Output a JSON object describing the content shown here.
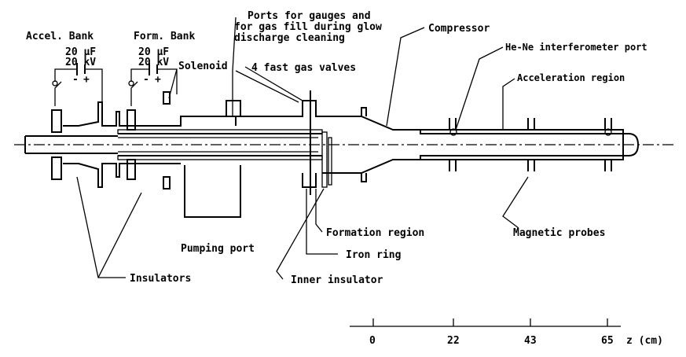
{
  "labels": {
    "accel_bank": "Accel. Bank",
    "form_bank": "Form. Bank",
    "accel_cap": "20 μF",
    "accel_volt": "20 kV",
    "form_cap": "20 μF",
    "form_volt": "20 kV",
    "ports_1": "Ports for gauges and",
    "ports_2": "for gas fill during glow",
    "ports_3": "discharge cleaning",
    "compressor": "Compressor",
    "he_ne": "He-Ne interferometer port",
    "solenoid": "Solenoid",
    "gas_valves": "4 fast gas valves",
    "acceleration_region": "Acceleration region",
    "formation_region": "Formation region",
    "magnetic_probes": "Magnetic probes",
    "pumping_port": "Pumping port",
    "iron_ring": "Iron ring",
    "insulators": "Insulators",
    "inner_insulator": "Inner insulator",
    "polarity_minus": "-",
    "polarity_plus": "+"
  },
  "scale": {
    "ticks": [
      "0",
      "22",
      "43",
      "65"
    ],
    "unit_label": "z (cm)"
  }
}
